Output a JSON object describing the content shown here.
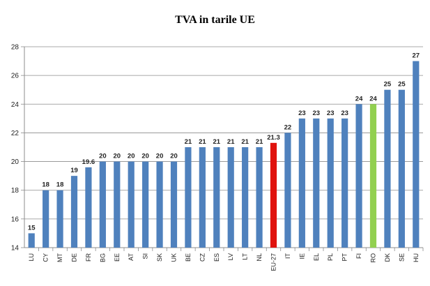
{
  "chart_data": {
    "type": "bar",
    "title": "TVA in tarile UE",
    "xlabel": "",
    "ylabel": "",
    "ylim": [
      14,
      28
    ],
    "yticks": [
      14,
      16,
      18,
      20,
      22,
      24,
      26,
      28
    ],
    "grid": true,
    "legend": "none",
    "categories": [
      "LU",
      "CY",
      "MT",
      "DE",
      "FR",
      "BG",
      "EE",
      "AT",
      "SI",
      "SK",
      "UK",
      "BE",
      "CZ",
      "ES",
      "LV",
      "LT",
      "NL",
      "EU-27",
      "IT",
      "IE",
      "EL",
      "PL",
      "PT",
      "FI",
      "RO",
      "DK",
      "SE",
      "HU"
    ],
    "values": [
      15,
      18,
      18,
      19,
      19.6,
      20,
      20,
      20,
      20,
      20,
      20,
      21,
      21,
      21,
      21,
      21,
      21,
      21.3,
      22,
      23,
      23,
      23,
      23,
      24,
      24,
      25,
      25,
      27
    ],
    "data_labels": [
      "15",
      "18",
      "18",
      "19",
      "19.6",
      "20",
      "20",
      "20",
      "20",
      "20",
      "20",
      "21",
      "21",
      "21",
      "21",
      "21",
      "21",
      "21.3",
      "22",
      "23",
      "23",
      "23",
      "23",
      "24",
      "24",
      "25",
      "25",
      "27"
    ],
    "colors": {
      "default": "#4f81bd",
      "highlight_eu": "#e0130e",
      "highlight_ro": "#92d050"
    },
    "highlights": {
      "EU-27": "highlight_eu",
      "RO": "highlight_ro"
    }
  }
}
